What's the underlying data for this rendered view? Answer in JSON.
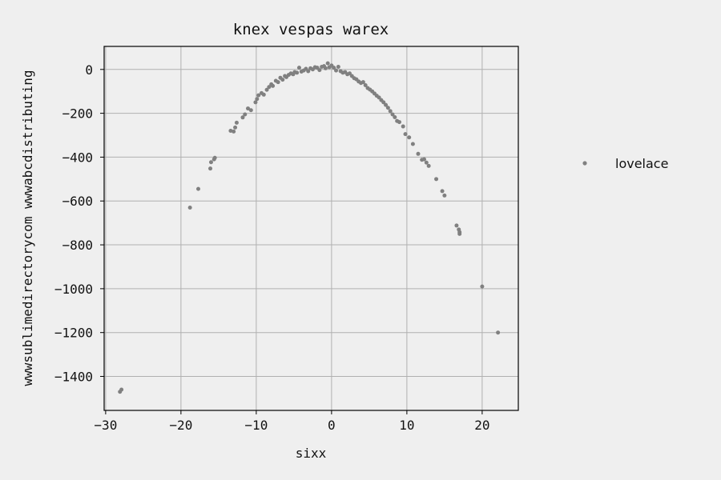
{
  "chart_data": {
    "type": "scatter",
    "title": "knex vespas warex",
    "xlabel": "sixx",
    "ylabel": "wwwsublimedirectorycom wwwabcdistributing",
    "xlim": [
      -30.2,
      24.8
    ],
    "ylim": [
      -1555,
      105
    ],
    "xticks": [
      -30,
      -20,
      -10,
      0,
      10,
      20
    ],
    "yticks": [
      0,
      -200,
      -400,
      -600,
      -800,
      -1000,
      -1200,
      -1400
    ],
    "grid": true,
    "legend": {
      "position": "right",
      "entries": [
        "lovelace"
      ]
    },
    "series": [
      {
        "name": "lovelace",
        "color": "#808080",
        "points": [
          [
            -28.1,
            -1470
          ],
          [
            -27.9,
            -1460
          ],
          [
            -18.8,
            -630
          ],
          [
            -17.7,
            -545
          ],
          [
            -16.1,
            -452
          ],
          [
            -16.0,
            -423
          ],
          [
            -15.6,
            -410
          ],
          [
            -15.5,
            -403
          ],
          [
            -13.4,
            -280
          ],
          [
            -13.0,
            -283
          ],
          [
            -12.8,
            -265
          ],
          [
            -12.6,
            -243
          ],
          [
            -11.8,
            -219
          ],
          [
            -11.5,
            -205
          ],
          [
            -11.1,
            -178
          ],
          [
            -10.7,
            -186
          ],
          [
            -10.1,
            -150
          ],
          [
            -9.9,
            -135
          ],
          [
            -9.7,
            -118
          ],
          [
            -9.3,
            -108
          ],
          [
            -9.0,
            -115
          ],
          [
            -8.6,
            -93
          ],
          [
            -8.3,
            -80
          ],
          [
            -8.0,
            -68
          ],
          [
            -7.8,
            -75
          ],
          [
            -7.4,
            -52
          ],
          [
            -7.1,
            -58
          ],
          [
            -6.8,
            -38
          ],
          [
            -6.5,
            -47
          ],
          [
            -6.2,
            -30
          ],
          [
            -6.0,
            -35
          ],
          [
            -5.7,
            -25
          ],
          [
            -5.4,
            -18
          ],
          [
            -5.1,
            -22
          ],
          [
            -4.9,
            -12
          ],
          [
            -4.6,
            -15
          ],
          [
            -4.3,
            8
          ],
          [
            -4.0,
            -10
          ],
          [
            -3.7,
            -5
          ],
          [
            -3.4,
            3
          ],
          [
            -3.1,
            -8
          ],
          [
            -2.8,
            5
          ],
          [
            -2.5,
            0
          ],
          [
            -2.2,
            10
          ],
          [
            -1.9,
            8
          ],
          [
            -1.6,
            -3
          ],
          [
            -1.3,
            12
          ],
          [
            -1.0,
            15
          ],
          [
            -0.8,
            5
          ],
          [
            -0.5,
            28
          ],
          [
            -0.3,
            10
          ],
          [
            0.0,
            18
          ],
          [
            0.3,
            8
          ],
          [
            0.6,
            -5
          ],
          [
            0.9,
            12
          ],
          [
            1.2,
            -8
          ],
          [
            1.5,
            -15
          ],
          [
            1.8,
            -12
          ],
          [
            2.1,
            -22
          ],
          [
            2.4,
            -18
          ],
          [
            2.7,
            -30
          ],
          [
            3.0,
            -40
          ],
          [
            3.3,
            -45
          ],
          [
            3.6,
            -55
          ],
          [
            3.9,
            -62
          ],
          [
            4.2,
            -58
          ],
          [
            4.5,
            -72
          ],
          [
            4.8,
            -85
          ],
          [
            5.1,
            -92
          ],
          [
            5.4,
            -100
          ],
          [
            5.7,
            -110
          ],
          [
            6.0,
            -120
          ],
          [
            6.3,
            -128
          ],
          [
            6.6,
            -140
          ],
          [
            6.9,
            -150
          ],
          [
            7.2,
            -162
          ],
          [
            7.5,
            -175
          ],
          [
            7.8,
            -190
          ],
          [
            8.1,
            -205
          ],
          [
            8.4,
            -218
          ],
          [
            8.7,
            -235
          ],
          [
            9.0,
            -240
          ],
          [
            9.5,
            -260
          ],
          [
            9.8,
            -295
          ],
          [
            10.3,
            -310
          ],
          [
            10.8,
            -340
          ],
          [
            11.5,
            -385
          ],
          [
            12.0,
            -412
          ],
          [
            12.3,
            -410
          ],
          [
            12.6,
            -425
          ],
          [
            12.9,
            -440
          ],
          [
            13.9,
            -500
          ],
          [
            14.7,
            -555
          ],
          [
            15.0,
            -575
          ],
          [
            16.6,
            -712
          ],
          [
            16.9,
            -730
          ],
          [
            17.0,
            -742
          ],
          [
            17.0,
            -750
          ],
          [
            20.0,
            -990
          ],
          [
            22.1,
            -1200
          ]
        ]
      }
    ]
  }
}
